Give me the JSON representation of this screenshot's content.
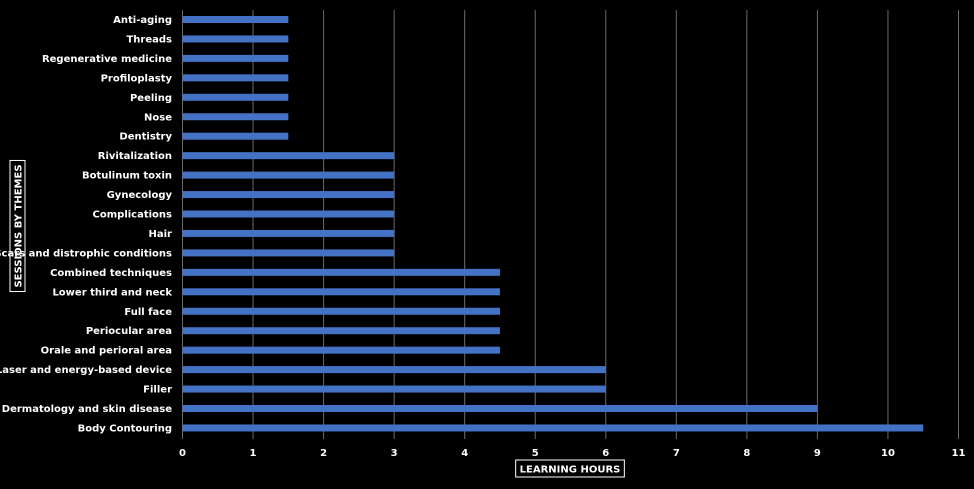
{
  "chart_data": {
    "type": "bar",
    "orientation": "horizontal",
    "title": "",
    "xlabel": "LEARNING HOURS",
    "ylabel": "SESSIONS BY THEMES",
    "xlim": [
      0,
      11
    ],
    "xticks": [
      0,
      1,
      2,
      3,
      4,
      5,
      6,
      7,
      8,
      9,
      10,
      11
    ],
    "grid": true,
    "bar_color": "#4472c4",
    "grid_color": "#6b6b6b",
    "background": "#000000",
    "categories": [
      "Anti-aging",
      "Threads",
      "Regenerative medicine",
      "Profiloplasty",
      "Peeling",
      "Nose",
      "Dentistry",
      "Rivitalization",
      "Botulinum toxin",
      "Gynecology",
      "Complications",
      "Hair",
      "Scars and distrophic conditions",
      "Combined techniques",
      "Lower third and neck",
      "Full face",
      "Periocular area",
      "Orale and perioral area",
      "Laser and energy-based device",
      "Filler",
      "Dermatology and skin disease",
      "Body Contouring"
    ],
    "values": [
      1.5,
      1.5,
      1.5,
      1.5,
      1.5,
      1.5,
      1.5,
      3,
      3,
      3,
      3,
      3,
      3,
      4.5,
      4.5,
      4.5,
      4.5,
      4.5,
      6,
      6,
      9,
      10.5
    ]
  }
}
